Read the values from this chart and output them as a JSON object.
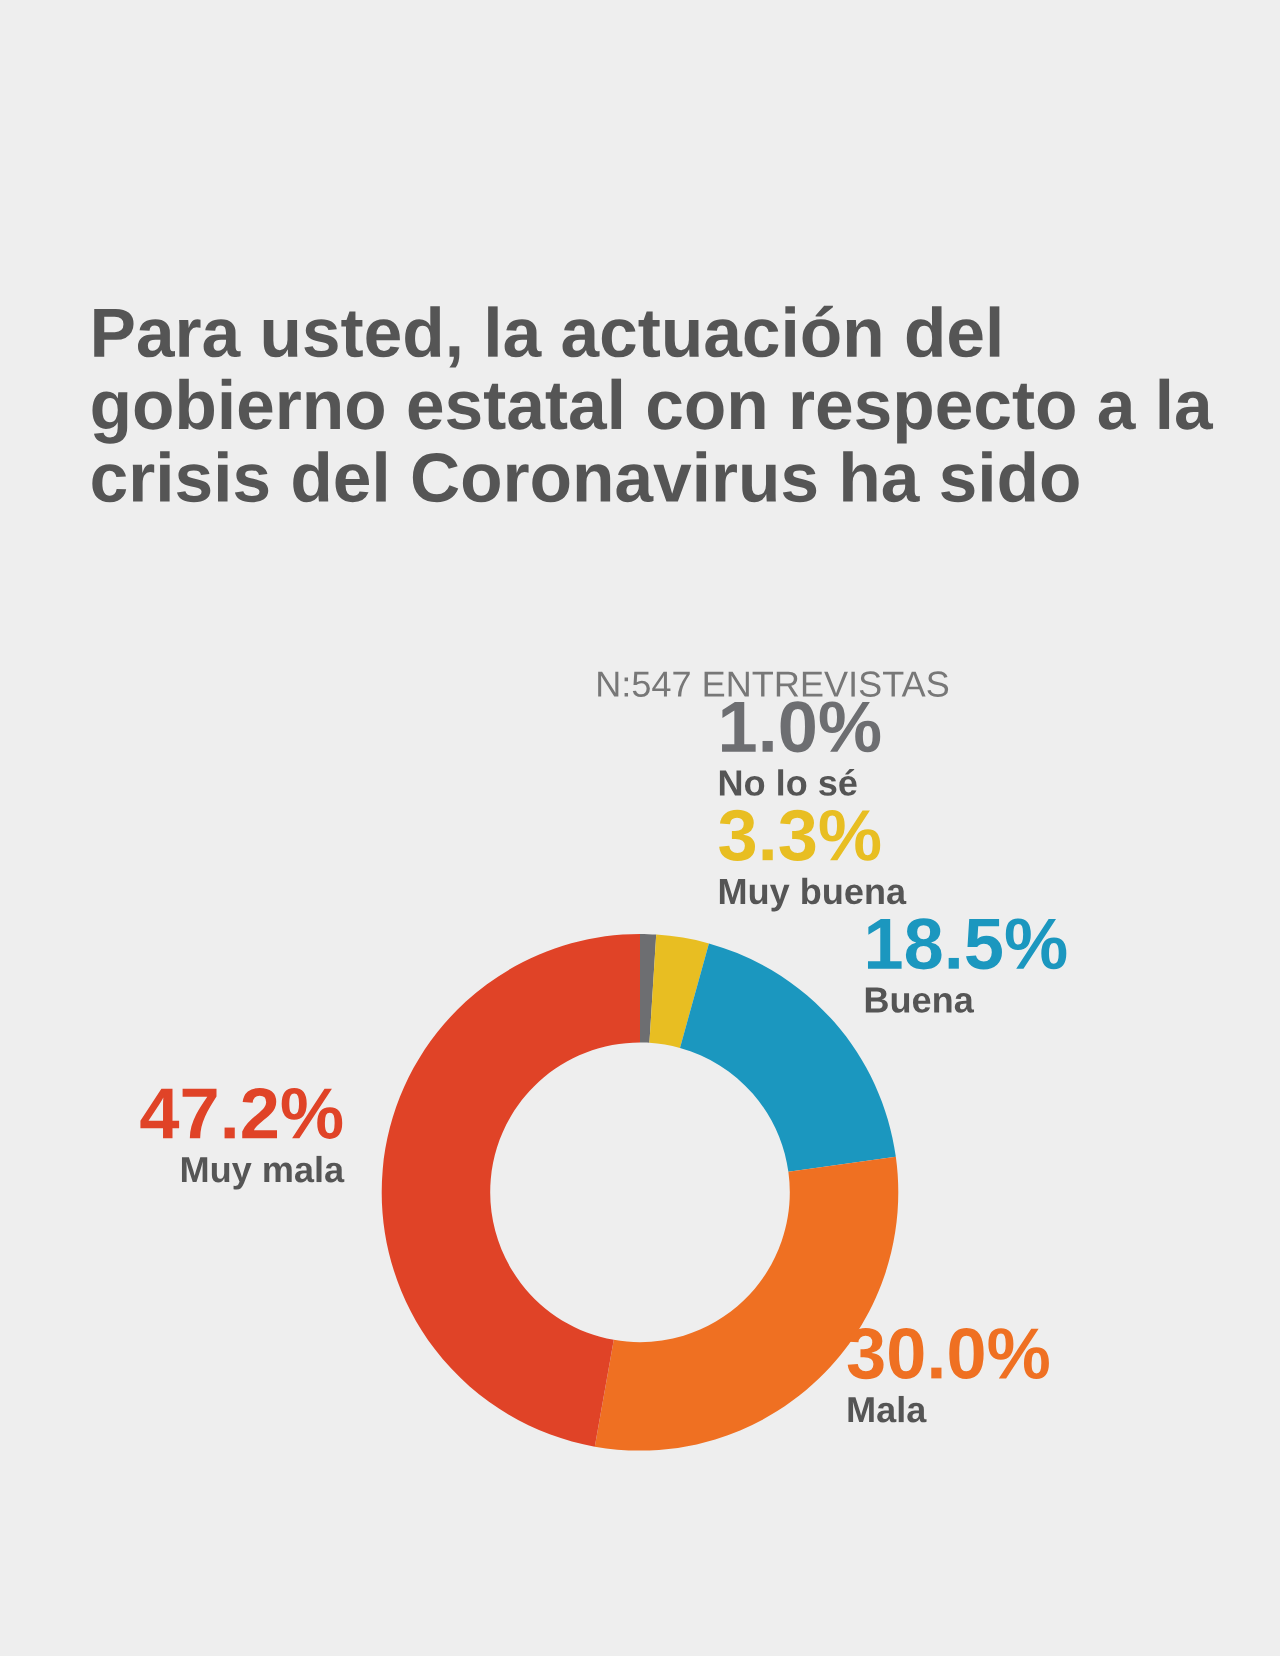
{
  "chart_data": {
    "type": "donut",
    "title": "Para usted, la actuación del gobierno estatal con respecto a la crisis del Coronavirus ha sido",
    "subtitle": "N:547 ENTREVISTAS",
    "categories": [
      "No lo sé",
      "Muy buena",
      "Buena",
      "Mala",
      "Muy mala"
    ],
    "values": [
      1.0,
      3.3,
      18.5,
      30.0,
      47.2
    ],
    "value_labels": [
      "1.0%",
      "3.3%",
      "18.5%",
      "30.0%",
      "47.2%"
    ],
    "colors": [
      "#6d6e71",
      "#e8be22",
      "#1b97bf",
      "#ef7022",
      "#e04327"
    ],
    "legend": false
  }
}
